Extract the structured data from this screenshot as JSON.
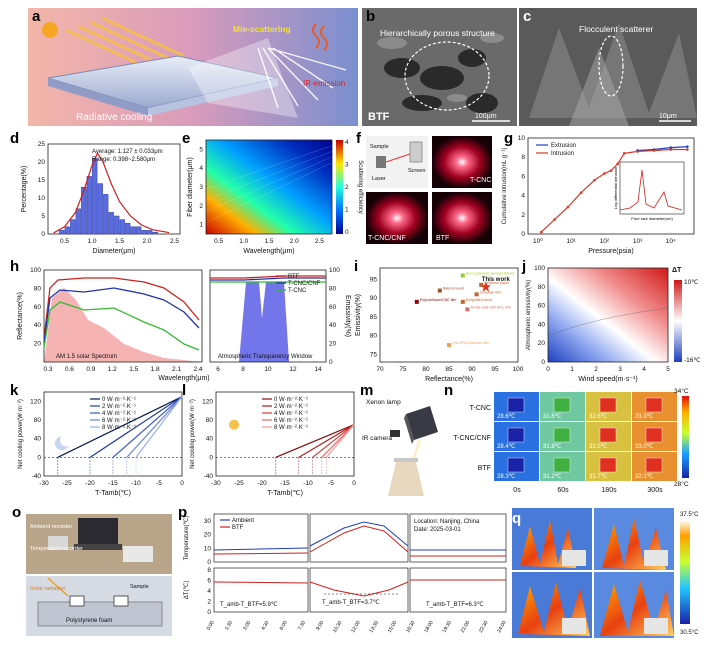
{
  "panels": {
    "a": {
      "letter": "a",
      "labels": {
        "mie": "Mie-scattering",
        "ir": "IR-emission",
        "rc": "Radiative cooling"
      }
    },
    "b": {
      "letter": "b",
      "labels": {
        "structure": "Hierarchically porous structure",
        "sample": "BTF",
        "scale": "100μm"
      }
    },
    "c": {
      "letter": "c",
      "labels": {
        "scatterer": "Flocculent scatterer",
        "scale": "10μm"
      }
    },
    "d": {
      "letter": "d",
      "labels": {
        "average": "Average: 1.127 ± 0.033μm",
        "range": "Range: 0.398~2.580μm"
      }
    },
    "e": {
      "letter": "e",
      "colorbar_label": "Scattering efficiency",
      "colorbar_ticks": [
        "4",
        "3",
        "2",
        "1",
        "0"
      ]
    },
    "f": {
      "letter": "f",
      "labels": {
        "sample": "Sample",
        "screen": "Screen",
        "laser": "Laser",
        "tcnc": "T-CNC",
        "tcnccnf": "T-CNC/CNF",
        "btf": "BTF"
      }
    },
    "g": {
      "letter": "g",
      "inset_labels": {
        "x": "Pore size diameter(nm)",
        "y": "Log differential intrusion"
      }
    },
    "h": {
      "letter": "h",
      "labels": {
        "solar": "AM 1.5 solar Spectrum",
        "window": "Atmospheric Transparency Window"
      }
    },
    "i": {
      "letter": "i",
      "this_work": "This work"
    },
    "j": {
      "letter": "j",
      "colorbar_title": "ΔT",
      "colorbar_top": "10℃",
      "colorbar_bottom": "-16℃"
    },
    "k": {
      "letter": "k"
    },
    "l": {
      "letter": "l"
    },
    "m": {
      "letter": "m",
      "labels": {
        "lamp": "Xenon lamp",
        "camera": "IR camera"
      }
    },
    "n": {
      "letter": "n",
      "rows": [
        "T-CNC",
        "T-CNC/CNF",
        "BTF"
      ],
      "cols": [
        "0s",
        "60s",
        "180s",
        "300s"
      ],
      "temps": [
        [
          "28.6℃",
          "31.6℃",
          "32.6℃",
          "33.3℃"
        ],
        [
          "28.4℃",
          "31.8℃",
          "32.5℃",
          "33.0℃"
        ],
        [
          "28.3℃",
          "31.2℃",
          "31.7℃",
          "32.1℃"
        ]
      ],
      "scale_top": "34°C",
      "scale_bottom": "28°C"
    },
    "o": {
      "letter": "o",
      "labels": {
        "recorder": "Ambient recorder",
        "temp_recorder": "Temperature recorder",
        "solar": "Solar radiation",
        "foam": "Polystyrene foam",
        "sample": "Sample"
      }
    },
    "p": {
      "letter": "p",
      "location": "Location: Nanjing, China",
      "date": "Date: 2025-03-01",
      "ann": [
        "T_amb-T_BTF=5.9℃",
        "T_amb-T_BTF=3.7℃",
        "T_amb-T_BTF=6.3℃"
      ]
    },
    "q": {
      "letter": "q",
      "scale_top": "37.5°C",
      "scale_bottom": "30.5°C"
    }
  },
  "chart_data": [
    {
      "id": "d",
      "type": "bar",
      "xlabel": "Diameter(μm)",
      "ylabel": "Percentage(%)",
      "xlim": [
        0.2,
        2.6
      ],
      "ylim": [
        0,
        25
      ],
      "xticks": [
        "0.5",
        "1.0",
        "1.5",
        "2.0",
        "2.5"
      ],
      "yticks": [
        "0",
        "5",
        "10",
        "15",
        "20",
        "25"
      ],
      "x": [
        0.45,
        0.55,
        0.65,
        0.75,
        0.85,
        0.95,
        1.05,
        1.15,
        1.25,
        1.35,
        1.45,
        1.55,
        1.65,
        1.75,
        1.85,
        1.95,
        2.05,
        2.15
      ],
      "values": [
        1,
        2,
        4,
        7,
        13,
        16,
        21,
        14,
        11,
        6,
        5,
        4,
        3,
        2,
        2,
        1,
        1,
        0.5
      ],
      "fit": [
        [
          0.3,
          0.3
        ],
        [
          0.5,
          2
        ],
        [
          0.7,
          6
        ],
        [
          0.85,
          12
        ],
        [
          1.0,
          19
        ],
        [
          1.1,
          22.5
        ],
        [
          1.2,
          20
        ],
        [
          1.35,
          14
        ],
        [
          1.5,
          9
        ],
        [
          1.7,
          5
        ],
        [
          1.9,
          2.5
        ],
        [
          2.1,
          1.2
        ],
        [
          2.4,
          0.4
        ]
      ]
    },
    {
      "id": "e",
      "type": "heatmap",
      "xlabel": "Wavelength(μm)",
      "ylabel": "Fiber diameter(μm)",
      "xticks": [
        "0.5",
        "1.0",
        "1.5",
        "2.0",
        "2.5"
      ],
      "yticks": [
        "1",
        "2",
        "3",
        "4",
        "5"
      ]
    },
    {
      "id": "g",
      "type": "line",
      "xlabel": "Pressure(psia)",
      "ylabel": "Cumulative intrusion(mL g⁻¹)",
      "xticks": [
        "10⁰",
        "10¹",
        "10²",
        "10³",
        "10⁴"
      ],
      "yticks": [
        "0",
        "2",
        "4",
        "6",
        "8",
        "10"
      ],
      "series": [
        {
          "name": "Extrusion",
          "color": "#1f3fbf",
          "values": [
            [
              3.0,
              8.7
            ],
            [
              3.5,
              8.8
            ],
            [
              4.0,
              9.0
            ],
            [
              4.5,
              9.1
            ]
          ]
        },
        {
          "name": "Intrusion",
          "color": "#d43a2a",
          "values": [
            [
              0.1,
              0.2
            ],
            [
              0.5,
              1.5
            ],
            [
              0.9,
              2.8
            ],
            [
              1.3,
              4.3
            ],
            [
              1.7,
              5.6
            ],
            [
              2.0,
              6.3
            ],
            [
              2.2,
              6.6
            ],
            [
              2.4,
              7.3
            ],
            [
              2.6,
              8.4
            ],
            [
              3.0,
              8.6
            ],
            [
              3.5,
              8.7
            ],
            [
              4.0,
              8.8
            ],
            [
              4.5,
              8.8
            ]
          ]
        }
      ]
    },
    {
      "id": "h",
      "type": "line",
      "xlabel": "Wavelength(μm)",
      "ylabel": "Reflectance(%)",
      "y2label": "Emissivity(%)",
      "xticks": [
        "0.3",
        "0.6",
        "0.9",
        "1.2",
        "1.5",
        "1.8",
        "2.1",
        "2.4",
        "6",
        "8",
        "10",
        "12",
        "14"
      ],
      "yticks": [
        "20",
        "40",
        "60",
        "80",
        "100"
      ],
      "y2ticks": [
        "0",
        "20",
        "40",
        "60",
        "80",
        "100"
      ],
      "series": [
        {
          "name": "BTF",
          "color": "#d0201c"
        },
        {
          "name": "T-CNC/CNF",
          "color": "#2233aa"
        },
        {
          "name": "T-CNC",
          "color": "#33bb33"
        }
      ]
    },
    {
      "id": "i",
      "type": "scatter",
      "xlabel": "Reflectance(%)",
      "ylabel": "Emissivity(%)",
      "xticks": [
        "70",
        "75",
        "80",
        "85",
        "90",
        "95",
        "100"
      ],
      "yticks": [
        "75",
        "80",
        "85",
        "90",
        "95"
      ],
      "points": [
        {
          "label": "Al₂O₃/cellulose aerogel fabrics",
          "x": 88,
          "y": 96,
          "color": "#9acd32"
        },
        {
          "label": "Cellulose paper",
          "x": 92,
          "y": 93.5,
          "color": "#c86428"
        },
        {
          "label": "Natural wood",
          "x": 83,
          "y": 92,
          "color": "#a0522d"
        },
        {
          "label": "Cellulose film",
          "x": 91,
          "y": 91,
          "color": "#c86428"
        },
        {
          "label": "Polyurethane/CNC film",
          "x": 78,
          "y": 89,
          "color": "#8b0000"
        },
        {
          "label": "Delignified wood",
          "x": 88,
          "y": 89,
          "color": "#c86428"
        },
        {
          "label": "Textile coat with SiO₂ film",
          "x": 89,
          "y": 87,
          "color": "#d46a6a"
        },
        {
          "label": "CNC/PVA photonic film",
          "x": 85,
          "y": 77.5,
          "color": "#e8a05a"
        },
        {
          "label": "This work",
          "x": 93,
          "y": 93,
          "color": "#e0321e"
        }
      ]
    },
    {
      "id": "j",
      "type": "heatmap",
      "xlabel": "Wind speed(m·s⁻¹)",
      "ylabel": "Atmospheric emissivity(%)",
      "xticks": [
        "0",
        "1",
        "2",
        "3",
        "4",
        "5"
      ],
      "yticks": [
        "0",
        "20",
        "40",
        "60",
        "80",
        "100"
      ]
    },
    {
      "id": "k",
      "type": "line",
      "xlabel": "T-Tamb(℃)",
      "ylabel": "Net cooling power(W·m⁻²)",
      "xticks": [
        "-30",
        "-25",
        "-20",
        "-15",
        "-10",
        "-5",
        "0"
      ],
      "yticks": [
        "-40",
        "0",
        "40",
        "80",
        "120"
      ],
      "series": [
        {
          "name": "0 W·m⁻²·K⁻¹",
          "x_intercept": -27
        },
        {
          "name": "2 W·m⁻²·K⁻¹",
          "x_intercept": -20
        },
        {
          "name": "4 W·m⁻²·K⁻¹",
          "x_intercept": -15
        },
        {
          "name": "6 W·m⁻²·K⁻¹",
          "x_intercept": -12
        },
        {
          "name": "8 W·m⁻²·K⁻¹",
          "x_intercept": -10
        }
      ],
      "y_at_zero": 130
    },
    {
      "id": "l",
      "type": "line",
      "xlabel": "T-Tamb(℃)",
      "ylabel": "Net cooling power(W·m⁻²)",
      "xticks": [
        "-30",
        "-25",
        "-20",
        "-15",
        "-10",
        "-5",
        "0"
      ],
      "yticks": [
        "-40",
        "0",
        "40",
        "80",
        "120"
      ],
      "series": [
        {
          "name": "0 W·m⁻²·K⁻¹",
          "x_intercept": -17
        },
        {
          "name": "2 W·m⁻²·K⁻¹",
          "x_intercept": -12
        },
        {
          "name": "4 W·m⁻²·K⁻¹",
          "x_intercept": -9
        },
        {
          "name": "6 W·m⁻²·K⁻¹",
          "x_intercept": -7
        },
        {
          "name": "8 W·m⁻²·K⁻¹",
          "x_intercept": -6
        }
      ],
      "y_at_zero": 70
    },
    {
      "id": "p",
      "type": "line",
      "ylabel_top": "Temperature(℃)",
      "ylabel_bottom": "ΔT(℃)",
      "yticks_top": [
        "0",
        "10",
        "20",
        "30"
      ],
      "yticks_bottom": [
        "0",
        "2",
        "4",
        "6",
        "8"
      ],
      "xticks": [
        "0:00",
        "1:30",
        "3:00",
        "4:30",
        "6:00",
        "7:30",
        "9:00",
        "10:30",
        "12:00",
        "13:30",
        "15:00",
        "16:30",
        "18:00",
        "19:30",
        "21:00",
        "22:30",
        "24:00"
      ],
      "series": [
        {
          "name": "Ambient",
          "color": "#1f3fbf"
        },
        {
          "name": "BTF",
          "color": "#d0201c"
        }
      ]
    }
  ]
}
